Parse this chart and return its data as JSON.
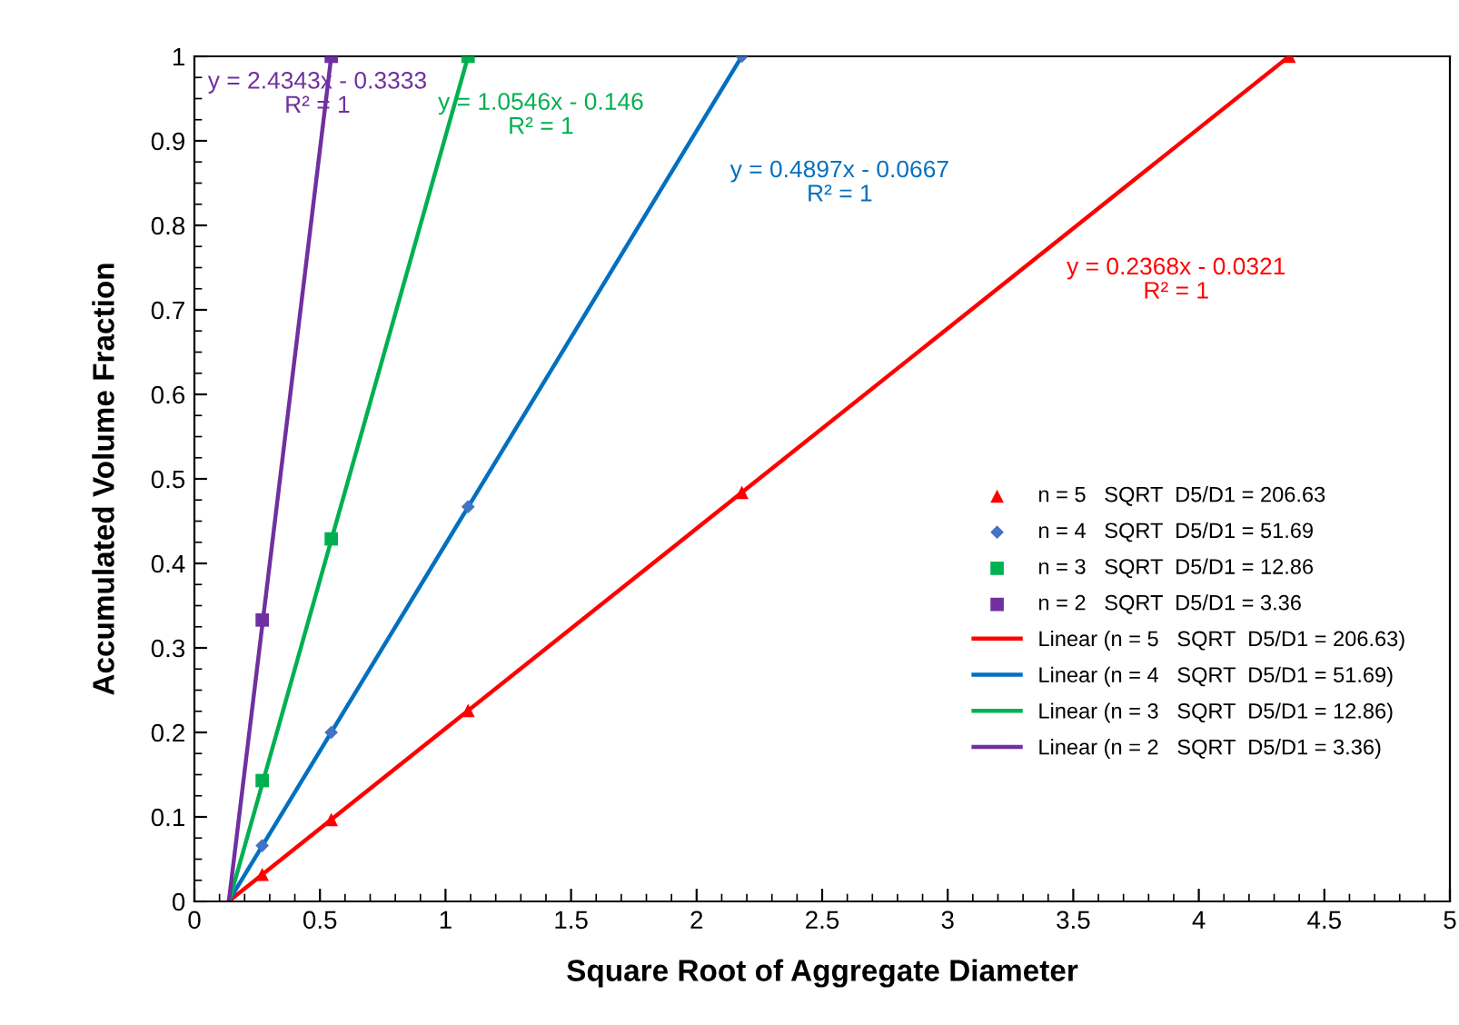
{
  "chart_data": {
    "type": "scatter",
    "xlabel": "Square Root of Aggregate Diameter",
    "ylabel": "Accumulated Volume Fraction",
    "xlim": [
      0,
      5
    ],
    "xticks": [
      0,
      0.5,
      1,
      1.5,
      2,
      2.5,
      3,
      3.5,
      4,
      4.5,
      5
    ],
    "ylim": [
      0,
      1
    ],
    "yticks": [
      0,
      0.1,
      0.2,
      0.3,
      0.4,
      0.5,
      0.6,
      0.7,
      0.8,
      0.9,
      1
    ],
    "grid": false,
    "legend": "right",
    "series": [
      {
        "name": "n = 5   SQRT  D5/D1 = 206.63",
        "marker": "triangle",
        "color": "#ff0000",
        "x": [
          0.27,
          0.545,
          1.09,
          2.18,
          4.36
        ],
        "values": [
          0.032,
          0.097,
          0.226,
          0.484,
          1.0
        ]
      },
      {
        "name": "n = 4   SQRT  D5/D1 = 51.69",
        "marker": "diamond",
        "color": "#4472c4",
        "x": [
          0.27,
          0.545,
          1.09,
          2.18
        ],
        "values": [
          0.066,
          0.2,
          0.467,
          1.0
        ]
      },
      {
        "name": "n = 3   SQRT  D5/D1 = 12.86",
        "marker": "square",
        "color": "#00b050",
        "x": [
          0.27,
          0.545,
          1.09
        ],
        "values": [
          0.143,
          0.429,
          1.0
        ]
      },
      {
        "name": "n = 2   SQRT  D5/D1 = 3.36",
        "marker": "square",
        "color": "#7030a0",
        "x": [
          0.27,
          0.545
        ],
        "values": [
          0.333,
          1.0
        ]
      },
      {
        "name": "Linear (n = 5   SQRT  D5/D1 = 206.63)",
        "type": "line",
        "color": "#ff0000",
        "x": [
          0.136,
          4.36
        ],
        "values": [
          0,
          1.0
        ]
      },
      {
        "name": "Linear (n = 4   SQRT  D5/D1 = 51.69)",
        "type": "line",
        "color": "#0070c0",
        "x": [
          0.136,
          2.18
        ],
        "values": [
          0,
          1.0
        ]
      },
      {
        "name": "Linear (n = 3   SQRT  D5/D1 = 12.86)",
        "type": "line",
        "color": "#00b050",
        "x": [
          0.138,
          1.09
        ],
        "values": [
          0,
          1.0
        ]
      },
      {
        "name": "Linear (n = 2   SQRT  D5/D1 = 3.36)",
        "type": "line",
        "color": "#7030a0",
        "x": [
          0.137,
          0.545
        ],
        "values": [
          0,
          1.0
        ]
      }
    ],
    "annotations": [
      "y = 2.4343x - 0.3333\nR² = 1",
      "y = 1.0546x - 0.146\nR² = 1",
      "y = 0.4897x - 0.0667\nR² = 1",
      "y = 0.2368x - 0.0321\nR² = 1"
    ]
  }
}
